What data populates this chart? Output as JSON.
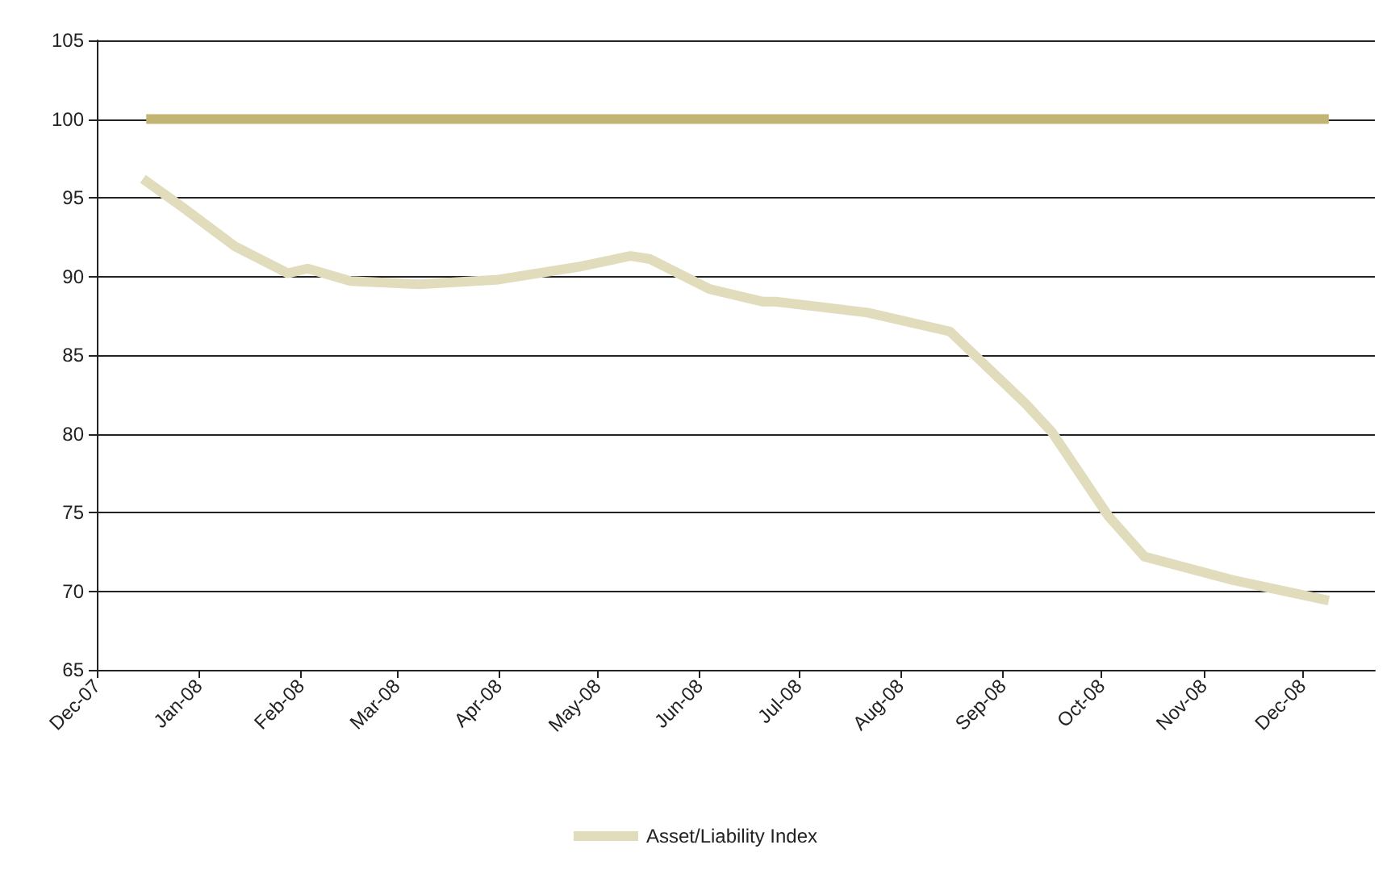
{
  "chart_data": {
    "type": "line",
    "x": [
      "2007-12-15",
      "2007-12-27",
      "2008-01-12",
      "2008-01-28",
      "2008-02-03",
      "2008-02-16",
      "2008-03-08",
      "2008-04-01",
      "2008-04-25",
      "2008-05-11",
      "2008-05-17",
      "2008-06-04",
      "2008-06-20",
      "2008-06-24",
      "2008-07-22",
      "2008-08-16",
      "2008-09-08",
      "2008-09-16",
      "2008-10-03",
      "2008-10-14",
      "2008-11-10",
      "2008-12-09"
    ],
    "series": [
      {
        "name": "Asset/Liability Index",
        "color": "#e0dcbc",
        "values": [
          96.2,
          94.4,
          91.9,
          90.2,
          90.5,
          89.7,
          89.5,
          89.8,
          90.6,
          91.3,
          91.1,
          89.2,
          88.4,
          88.4,
          87.7,
          86.5,
          81.9,
          80.1,
          74.8,
          72.2,
          70.7,
          69.4
        ]
      },
      {
        "color": "#c2b574",
        "x": [
          "2007-12-16",
          "2008-12-09"
        ],
        "values": [
          100,
          100
        ]
      }
    ],
    "xlim": [
      "2007-12-01",
      "2008-12-23"
    ],
    "xticks": [
      {
        "value": "2007-12-01",
        "label": "Dec-07"
      },
      {
        "value": "2008-01-01",
        "label": "Jan-08"
      },
      {
        "value": "2008-02-01",
        "label": "Feb-08"
      },
      {
        "value": "2008-03-01",
        "label": "Mar-08"
      },
      {
        "value": "2008-04-01",
        "label": "Apr-08"
      },
      {
        "value": "2008-05-01",
        "label": "May-08"
      },
      {
        "value": "2008-06-01",
        "label": "Jun-08"
      },
      {
        "value": "2008-07-01",
        "label": "Jul-08"
      },
      {
        "value": "2008-08-01",
        "label": "Aug-08"
      },
      {
        "value": "2008-09-01",
        "label": "Sep-08"
      },
      {
        "value": "2008-10-01",
        "label": "Oct-08"
      },
      {
        "value": "2008-11-01",
        "label": "Nov-08"
      },
      {
        "value": "2008-12-01",
        "label": "Dec-08"
      }
    ],
    "ylim": [
      65,
      105
    ],
    "yticks": [
      65,
      70,
      75,
      80,
      85,
      90,
      95,
      100,
      105
    ],
    "grid": "y",
    "legend": "bottom",
    "marker": "none",
    "line_style": "solid"
  }
}
